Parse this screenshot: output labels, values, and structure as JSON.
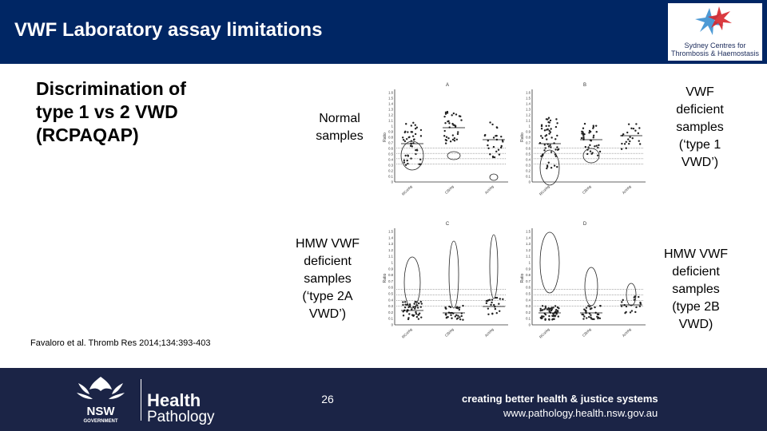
{
  "header": {
    "title": "VWF Laboratory assay limitations"
  },
  "logo": {
    "text_line1": "Sydney Centres for",
    "text_line2": "Thrombosis & Haemostasis"
  },
  "subtitle": "Discrimination of type 1 vs 2 VWD (RCPAQAP)",
  "labels": {
    "normal": [
      "Normal",
      "samples"
    ],
    "type1": [
      "VWF",
      "deficient",
      "samples",
      "(‘type 1",
      "VWD’)"
    ],
    "type2a": [
      "HMW VWF",
      "deficient",
      "samples",
      "(‘type 2A",
      "VWD’)"
    ],
    "type2b": [
      "HMW VWF",
      "deficient",
      "samples",
      "(type 2B",
      "VWD)"
    ]
  },
  "panels": [
    {
      "letter": "A",
      "ylabel": "Ratio",
      "ticks": [
        "1.6",
        "1.5",
        "1.4",
        "1.3",
        "1.2",
        "1.1",
        "1",
        "0.9",
        "0.8",
        "0.7",
        "0.6",
        "0.5",
        "0.4",
        "0.3",
        "0.2",
        "0.1",
        "0"
      ],
      "categories": [
        "RCo/Ag",
        "CB/Ag",
        "Act/Ag"
      ]
    },
    {
      "letter": "B",
      "ylabel": "Ratio",
      "ticks": [
        "1.6",
        "1.5",
        "1.4",
        "1.3",
        "1.2",
        "1.1",
        "1",
        "0.9",
        "0.8",
        "0.7",
        "0.6",
        "0.5",
        "0.4",
        "0.3",
        "0.2",
        "0.1",
        "0"
      ],
      "categories": [
        "RCo/Ag",
        "CB/Ag",
        "Act/Ag"
      ]
    },
    {
      "letter": "C",
      "ylabel": "Ratio",
      "ticks": [
        "1.5",
        "1.4",
        "1.3",
        "1.2",
        "1.1",
        "1",
        "0.9",
        "0.8",
        "0.7",
        "0.6",
        "0.5",
        "0.4",
        "0.3",
        "0.2",
        "0.1",
        "0"
      ],
      "categories": [
        "RCo/Ag",
        "CB/Ag",
        "Act/Ag"
      ]
    },
    {
      "letter": "D",
      "ylabel": "Ratio",
      "ticks": [
        "1.5",
        "1.4",
        "1.3",
        "1.2",
        "1.1",
        "1",
        "0.9",
        "0.8",
        "0.7",
        "0.6",
        "0.5",
        "0.4",
        "0.3",
        "0.2",
        "0.1",
        "0"
      ],
      "categories": [
        "RCo/Ag",
        "CB/Ag",
        "Act/Ag"
      ]
    }
  ],
  "citation": "Favaloro et al. Thromb Res 2014;134:393-403",
  "footer": {
    "nsw": "NSW",
    "government": "GOVERNMENT",
    "health": "Health",
    "pathology": "Pathology",
    "page_number": "26",
    "tagline": "creating better health & justice systems",
    "url": "www.pathology.health.nsw.gov.au"
  },
  "colors": {
    "header_bg": "#002664",
    "footer_bg": "#1b2446",
    "logo_blue": "#3a8fd0",
    "logo_red": "#d7262b"
  }
}
